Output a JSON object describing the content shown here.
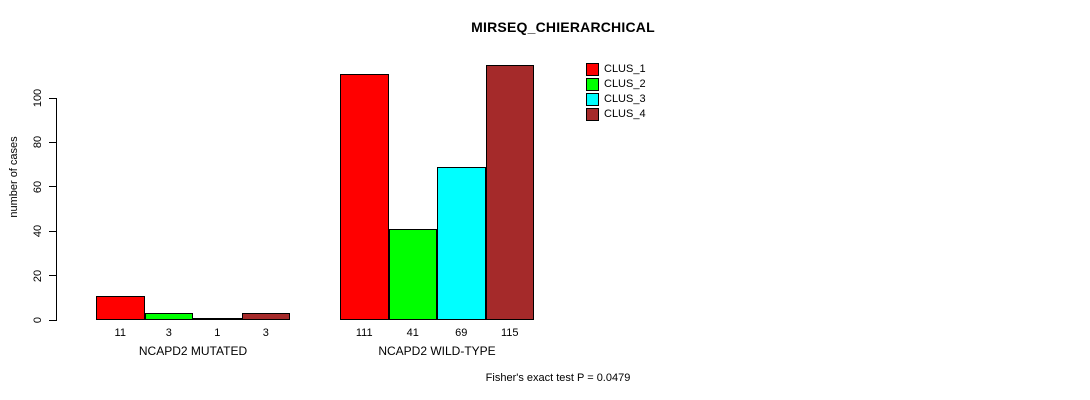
{
  "title": "MIRSEQ_CHIERARCHICAL",
  "chart_data": {
    "type": "bar",
    "title": "MIRSEQ_CHIERARCHICAL",
    "xlabel": "",
    "ylabel": "number of cases",
    "ylim": [
      0,
      115
    ],
    "yticks": [
      0,
      20,
      40,
      60,
      80,
      100
    ],
    "grid": false,
    "legend_position": "top-right",
    "categories": [
      "NCAPD2 MUTATED",
      "NCAPD2 WILD-TYPE"
    ],
    "series": [
      {
        "name": "CLUS_1",
        "color": "#FF0000",
        "values": [
          11,
          111
        ]
      },
      {
        "name": "CLUS_2",
        "color": "#00FF00",
        "values": [
          3,
          41
        ]
      },
      {
        "name": "CLUS_3",
        "color": "#00FFFF",
        "values": [
          1,
          69
        ]
      },
      {
        "name": "CLUS_4",
        "color": "#A52A2A",
        "values": [
          3,
          115
        ]
      }
    ],
    "groups": [
      {
        "label": "NCAPD2 MUTATED",
        "values": [
          11,
          3,
          1,
          3
        ]
      },
      {
        "label": "NCAPD2 WILD-TYPE",
        "values": [
          111,
          41,
          69,
          115
        ]
      }
    ],
    "bar_value_labels": [
      "11",
      "3",
      "1",
      "3",
      "111",
      "41",
      "69",
      "115"
    ],
    "annotation": "Fisher's exact test P = 0.0479"
  }
}
